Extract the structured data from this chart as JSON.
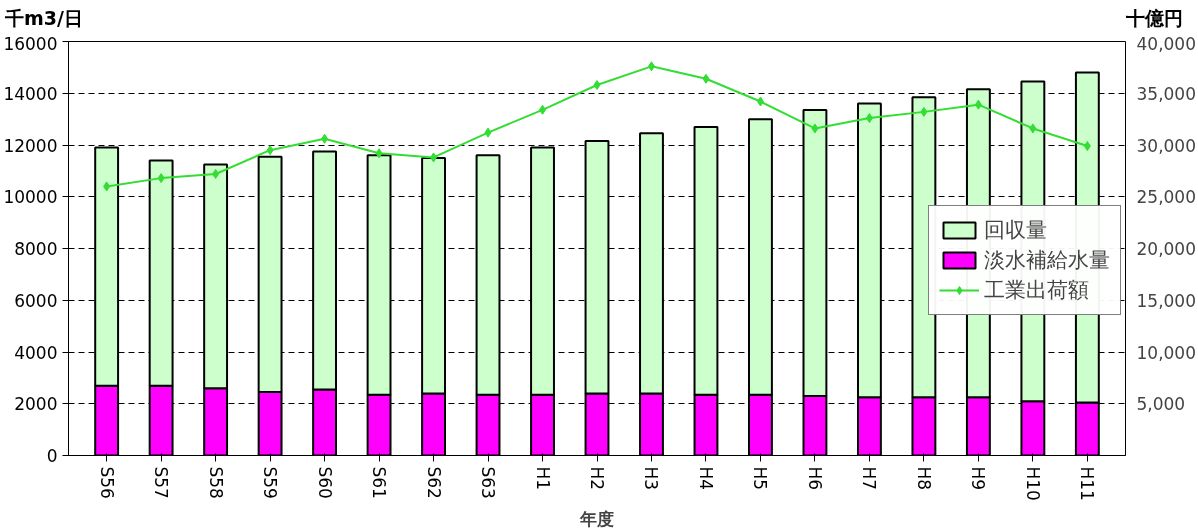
{
  "chart_data": {
    "type": "bar",
    "stacked": true,
    "categories": [
      "S56",
      "S57",
      "S58",
      "S59",
      "S60",
      "S61",
      "S62",
      "S63",
      "H1",
      "H2",
      "H3",
      "H4",
      "H5",
      "H6",
      "H7",
      "H8",
      "H9",
      "H10",
      "H11"
    ],
    "xlabel": "年度",
    "ylabel": "千m3/日",
    "y2label": "十億円",
    "series": [
      {
        "name": "淡水補給水量",
        "color": "#ff00ff",
        "values": [
          2700,
          2700,
          2600,
          2450,
          2550,
          2350,
          2400,
          2350,
          2350,
          2400,
          2400,
          2350,
          2350,
          2300,
          2250,
          2250,
          2250,
          2100,
          2050
        ]
      },
      {
        "name": "回収量",
        "color": "#ccffcc",
        "values": [
          9200,
          8700,
          8650,
          9100,
          9200,
          9250,
          9100,
          9250,
          9550,
          9750,
          10050,
          10350,
          10650,
          11050,
          11350,
          11600,
          11900,
          12350,
          12750
        ]
      },
      {
        "name": "工業出荷額",
        "type": "line",
        "axis": "y2",
        "color": "#33dd33",
        "marker": "diamond",
        "values": [
          26000,
          26800,
          27200,
          29500,
          30600,
          29200,
          28800,
          31200,
          33400,
          35800,
          37600,
          36400,
          34200,
          31600,
          32600,
          33200,
          33900,
          31600,
          29900
        ]
      }
    ],
    "ylim": [
      0,
      16000
    ],
    "yticks": [
      0,
      2000,
      4000,
      6000,
      8000,
      10000,
      12000,
      14000,
      16000
    ],
    "y2lim": [
      0,
      40000
    ],
    "y2ticks": [
      {
        "value": 5000,
        "label": "5,000"
      },
      {
        "value": 10000,
        "label": "10,000"
      },
      {
        "value": 15000,
        "label": "15,000"
      },
      {
        "value": 20000,
        "label": "20,000"
      },
      {
        "value": 25000,
        "label": "25,000"
      },
      {
        "value": 30000,
        "label": "30,000"
      },
      {
        "value": 35000,
        "label": "35,000"
      },
      {
        "value": 40000,
        "label": "40,000"
      }
    ],
    "grid": "y",
    "legend": "right"
  }
}
